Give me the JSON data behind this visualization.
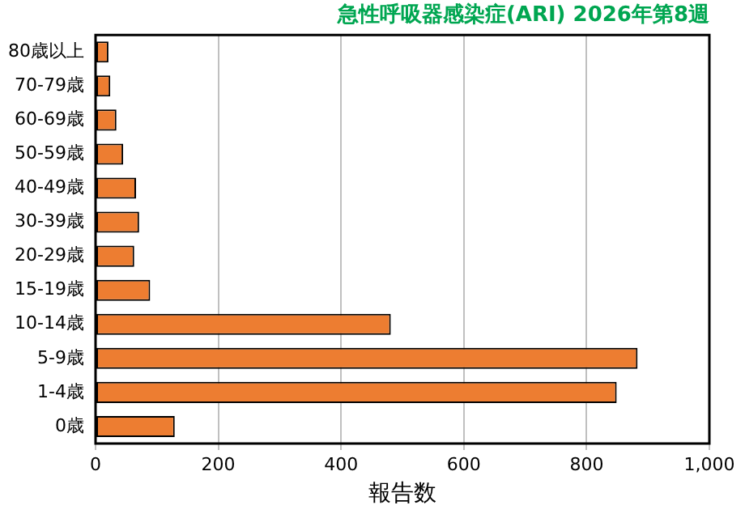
{
  "chart_data": {
    "type": "bar",
    "orientation": "horizontal",
    "title": "急性呼吸器感染症(ARI) 2026年第8週",
    "xlabel": "報告数",
    "categories": [
      "80歳以上",
      "70-79歳",
      "60-69歳",
      "50-59歳",
      "40-49歳",
      "30-39歳",
      "20-29歳",
      "15-19歳",
      "10-14歳",
      "5-9歳",
      "1-4歳",
      "0歳"
    ],
    "values": [
      21,
      24,
      34,
      45,
      66,
      71,
      63,
      89,
      481,
      883,
      849,
      129
    ],
    "color": "#ed7d31",
    "xlim": [
      0,
      1000
    ],
    "xticks": [
      0,
      200,
      400,
      600,
      800,
      {
        "value": 1000,
        "label": "1,000"
      }
    ],
    "grid": "x",
    "legend": false
  }
}
